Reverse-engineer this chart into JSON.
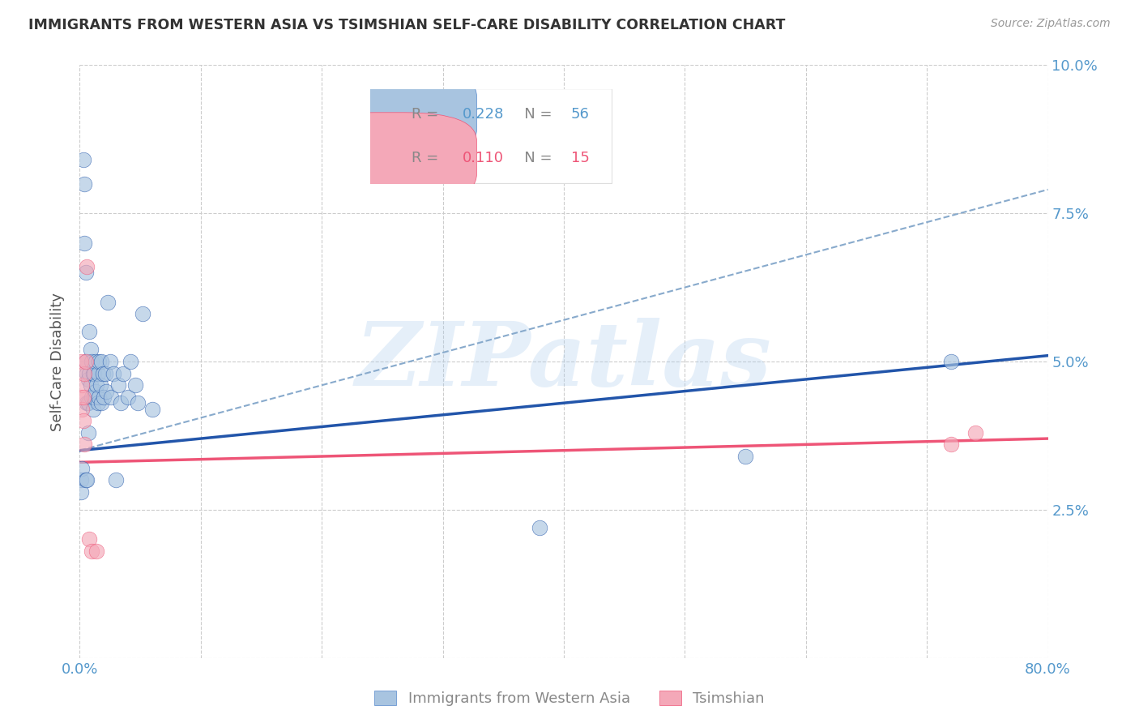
{
  "title": "IMMIGRANTS FROM WESTERN ASIA VS TSIMSHIAN SELF-CARE DISABILITY CORRELATION CHART",
  "source": "Source: ZipAtlas.com",
  "xlabel_blue": "Immigrants from Western Asia",
  "xlabel_pink": "Tsimshian",
  "ylabel": "Self-Care Disability",
  "watermark": "ZIPatlas",
  "blue_R": "0.228",
  "blue_N": "56",
  "pink_R": "0.110",
  "pink_N": "15",
  "blue_color": "#A8C4E0",
  "pink_color": "#F4A8B8",
  "trend_blue": "#2255AA",
  "trend_pink": "#EE5577",
  "dashed_color": "#88AACC",
  "x_min": 0.0,
  "x_max": 0.8,
  "y_min": 0.0,
  "y_max": 0.1,
  "background_color": "#FFFFFF",
  "grid_color": "#CCCCCC",
  "blue_x": [
    0.001,
    0.001,
    0.002,
    0.003,
    0.004,
    0.004,
    0.005,
    0.005,
    0.005,
    0.006,
    0.006,
    0.006,
    0.007,
    0.007,
    0.007,
    0.008,
    0.008,
    0.009,
    0.009,
    0.01,
    0.01,
    0.011,
    0.011,
    0.012,
    0.012,
    0.013,
    0.013,
    0.014,
    0.015,
    0.015,
    0.016,
    0.016,
    0.017,
    0.018,
    0.018,
    0.019,
    0.02,
    0.021,
    0.022,
    0.023,
    0.025,
    0.026,
    0.028,
    0.03,
    0.032,
    0.034,
    0.036,
    0.04,
    0.042,
    0.046,
    0.048,
    0.052,
    0.06,
    0.38,
    0.55,
    0.72
  ],
  "blue_y": [
    0.03,
    0.028,
    0.032,
    0.084,
    0.08,
    0.07,
    0.065,
    0.05,
    0.03,
    0.048,
    0.043,
    0.03,
    0.047,
    0.043,
    0.038,
    0.055,
    0.048,
    0.052,
    0.046,
    0.05,
    0.044,
    0.048,
    0.042,
    0.048,
    0.044,
    0.05,
    0.045,
    0.046,
    0.048,
    0.043,
    0.05,
    0.044,
    0.046,
    0.05,
    0.043,
    0.048,
    0.044,
    0.048,
    0.045,
    0.06,
    0.05,
    0.044,
    0.048,
    0.03,
    0.046,
    0.043,
    0.048,
    0.044,
    0.05,
    0.046,
    0.043,
    0.058,
    0.042,
    0.022,
    0.034,
    0.05
  ],
  "pink_x": [
    0.001,
    0.001,
    0.002,
    0.002,
    0.003,
    0.003,
    0.004,
    0.004,
    0.005,
    0.006,
    0.008,
    0.01,
    0.014,
    0.72,
    0.74
  ],
  "pink_y": [
    0.05,
    0.044,
    0.046,
    0.042,
    0.044,
    0.04,
    0.048,
    0.036,
    0.05,
    0.066,
    0.02,
    0.018,
    0.018,
    0.036,
    0.038
  ]
}
